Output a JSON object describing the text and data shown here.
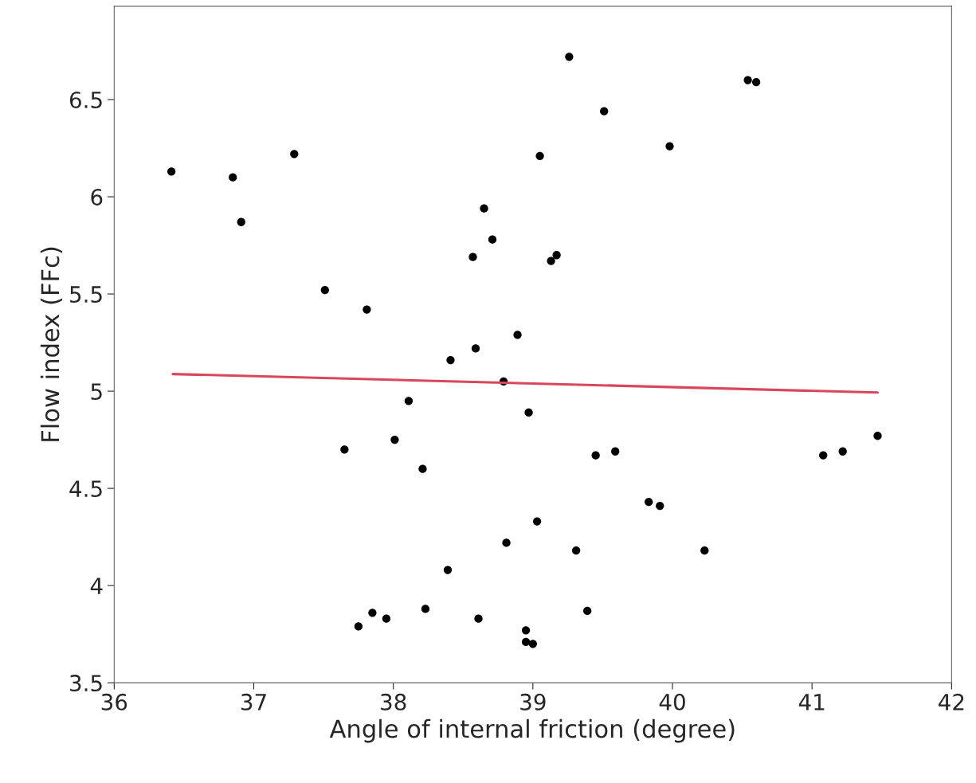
{
  "chart_data": {
    "type": "scatter",
    "xlabel": "Angle of internal friction (degree)",
    "ylabel": "Flow index (FFc)",
    "xlim": [
      36,
      42
    ],
    "ylim": [
      3.5,
      6.98
    ],
    "xticks": [
      36,
      37,
      38,
      39,
      40,
      41,
      42
    ],
    "yticks": [
      3.5,
      4,
      4.5,
      5,
      5.5,
      6,
      6.5
    ],
    "grid": false,
    "legend": false,
    "series": [
      {
        "marker": "circle",
        "color": "#000000",
        "x": [
          36.41,
          36.85,
          36.91,
          37.29,
          37.51,
          37.81,
          37.65,
          37.75,
          37.85,
          37.95,
          38.01,
          38.11,
          38.21,
          38.23,
          38.41,
          38.39,
          38.57,
          38.59,
          38.61,
          38.65,
          38.71,
          38.79,
          38.81,
          38.89,
          38.95,
          38.95,
          39.0,
          38.97,
          39.03,
          39.05,
          39.13,
          39.17,
          39.26,
          39.31,
          39.39,
          39.45,
          39.51,
          39.59,
          39.83,
          39.91,
          39.98,
          40.23,
          40.54,
          40.6,
          41.08,
          41.22,
          41.47
        ],
        "values": [
          6.13,
          6.1,
          5.87,
          6.22,
          5.52,
          5.42,
          4.7,
          3.79,
          3.86,
          3.83,
          4.75,
          4.95,
          4.6,
          3.88,
          5.16,
          4.08,
          5.69,
          5.22,
          3.83,
          5.94,
          5.78,
          5.05,
          4.22,
          5.29,
          3.77,
          3.71,
          3.7,
          4.89,
          4.33,
          6.21,
          5.67,
          5.7,
          6.72,
          4.18,
          3.87,
          4.67,
          6.44,
          4.69,
          4.43,
          4.41,
          6.26,
          4.18,
          6.6,
          6.59,
          4.67,
          4.69,
          4.77
        ]
      },
      {
        "type": "line",
        "color": "#d9475b",
        "line_style": "solid",
        "x": [
          36.42,
          41.47
        ],
        "values": [
          5.088,
          4.993
        ]
      }
    ]
  }
}
